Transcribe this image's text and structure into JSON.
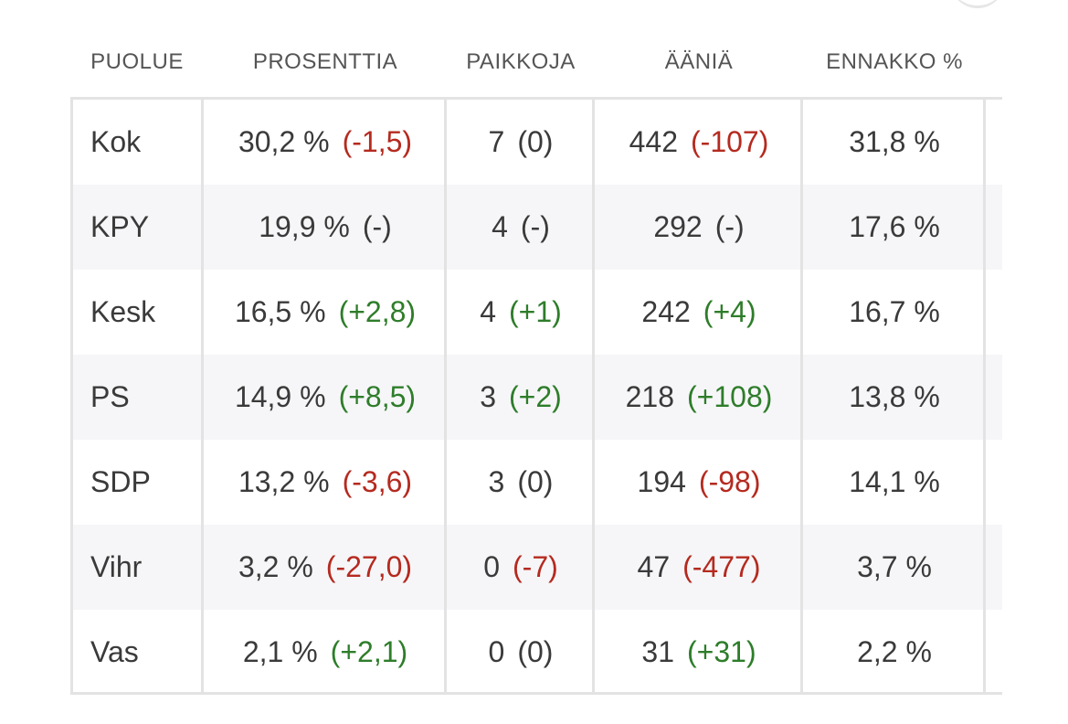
{
  "table": {
    "columns": [
      "PUOLUE",
      "PROSENTTIA",
      "PAIKKOJA",
      "ÄÄNIÄ",
      "ENNAKKO %"
    ],
    "rows": [
      {
        "party": "Kok",
        "pct": "30,2 %",
        "pct_change": "(-1,5)",
        "seats": "7",
        "seats_change": "(0)",
        "votes": "442",
        "votes_change": "(-107)",
        "advance": "31,8 %"
      },
      {
        "party": "KPY",
        "pct": "19,9 %",
        "pct_change": "(-)",
        "seats": "4",
        "seats_change": "(-)",
        "votes": "292",
        "votes_change": "(-)",
        "advance": "17,6 %"
      },
      {
        "party": "Kesk",
        "pct": "16,5 %",
        "pct_change": "(+2,8)",
        "seats": "4",
        "seats_change": "(+1)",
        "votes": "242",
        "votes_change": "(+4)",
        "advance": "16,7 %"
      },
      {
        "party": "PS",
        "pct": "14,9 %",
        "pct_change": "(+8,5)",
        "seats": "3",
        "seats_change": "(+2)",
        "votes": "218",
        "votes_change": "(+108)",
        "advance": "13,8 %"
      },
      {
        "party": "SDP",
        "pct": "13,2 %",
        "pct_change": "(-3,6)",
        "seats": "3",
        "seats_change": "(0)",
        "votes": "194",
        "votes_change": "(-98)",
        "advance": "14,1 %"
      },
      {
        "party": "Vihr",
        "pct": "3,2 %",
        "pct_change": "(-27,0)",
        "seats": "0",
        "seats_change": "(-7)",
        "votes": "47",
        "votes_change": "(-477)",
        "advance": "3,7 %"
      },
      {
        "party": "Vas",
        "pct": "2,1 %",
        "pct_change": "(+2,1)",
        "seats": "0",
        "seats_change": "(0)",
        "votes": "31",
        "votes_change": "(+31)",
        "advance": "2,2 %"
      }
    ]
  },
  "colors": {
    "negative_change": "#b52a1f",
    "positive_change": "#2e7d2a",
    "neutral_change": "#3a3a3a",
    "row_stripe": "#f6f6f8",
    "grid_line": "#e3e3e3"
  }
}
